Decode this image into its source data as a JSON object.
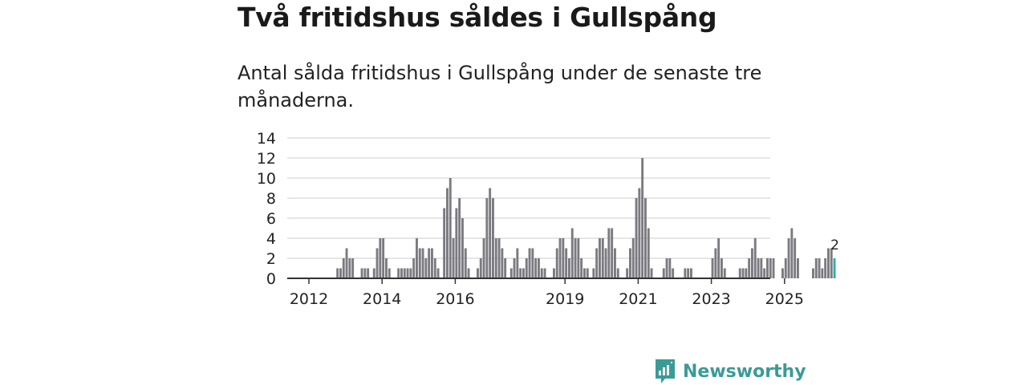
{
  "title": "Två fritidshus såldes i Gullspång",
  "subtitle": "Antal sålda fritidshus i Gullspång under de senaste tre månaderna.",
  "brand": {
    "name": "Newsworthy",
    "icon": "bar-chart-speech-bubble-icon",
    "color": "#3a9b96"
  },
  "colors": {
    "bar": "#7a7a80",
    "highlight": "#2bb0a8",
    "grid": "#dddddd",
    "axis": "#333333"
  },
  "chart_data": {
    "type": "bar",
    "title": "",
    "xlabel": "",
    "ylabel": "",
    "ylim": [
      0,
      14
    ],
    "yticks": [
      0,
      2,
      4,
      6,
      8,
      10,
      12,
      14
    ],
    "xticks": [
      "2012",
      "2014",
      "2016",
      "2019",
      "2021",
      "2023",
      "2025"
    ],
    "x_start": "2012-01",
    "x_end": "2026-04",
    "grid": true,
    "highlight_label": "2",
    "values": [
      0,
      0,
      0,
      0,
      0,
      0,
      0,
      0,
      0,
      1,
      1,
      2,
      3,
      2,
      2,
      0,
      0,
      1,
      1,
      1,
      0,
      1,
      3,
      4,
      4,
      2,
      1,
      0,
      0,
      1,
      1,
      1,
      1,
      1,
      2,
      4,
      3,
      3,
      2,
      3,
      3,
      2,
      1,
      0,
      7,
      9,
      10,
      4,
      7,
      8,
      6,
      3,
      1,
      0,
      0,
      1,
      2,
      4,
      8,
      9,
      8,
      4,
      4,
      3,
      2,
      0,
      1,
      2,
      3,
      1,
      1,
      2,
      3,
      3,
      2,
      2,
      1,
      1,
      0,
      0,
      1,
      3,
      4,
      4,
      3,
      2,
      5,
      4,
      4,
      2,
      1,
      1,
      0,
      1,
      3,
      4,
      4,
      3,
      5,
      5,
      3,
      1,
      0,
      0,
      1,
      3,
      4,
      8,
      9,
      12,
      8,
      5,
      1,
      0,
      0,
      0,
      1,
      2,
      2,
      1,
      0,
      0,
      0,
      1,
      1,
      1,
      0,
      0,
      0,
      0,
      0,
      0,
      2,
      3,
      4,
      2,
      1,
      0,
      0,
      0,
      0,
      1,
      1,
      1,
      2,
      3,
      4,
      2,
      2,
      1,
      2,
      2,
      2,
      0,
      0,
      1,
      2,
      4,
      5,
      4,
      2,
      0,
      0,
      0,
      0,
      1,
      2,
      2,
      1,
      2,
      3,
      3,
      2
    ]
  }
}
